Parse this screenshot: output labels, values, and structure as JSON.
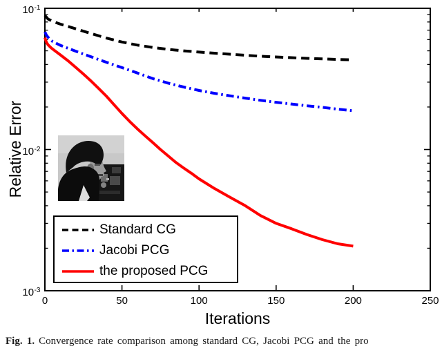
{
  "caption": {
    "fig_label": "Fig. 1.",
    "text": "Convergence rate comparison among standard CG, Jacobi PCG and the pro"
  },
  "chart_data": {
    "type": "line",
    "title": "",
    "xlabel": "Iterations",
    "ylabel": "Relative Error",
    "grid": false,
    "legend_position": "bottom-left",
    "x_axis": {
      "min": 0,
      "max": 250,
      "ticks": [
        0,
        50,
        100,
        150,
        200,
        250
      ]
    },
    "y_axis": {
      "scale": "log",
      "min": 0.001,
      "max": 0.1,
      "tick_base": "10",
      "tick_exponents": [
        -1,
        -2,
        -3
      ]
    },
    "inset": {
      "description": "cameraman test image"
    },
    "series": [
      {
        "name": "Standard CG",
        "color": "#000000",
        "line_style": "dashed",
        "points": [
          [
            0,
            0.089
          ],
          [
            2,
            0.084
          ],
          [
            5,
            0.0808
          ],
          [
            10,
            0.0773
          ],
          [
            20,
            0.0716
          ],
          [
            30,
            0.0662
          ],
          [
            40,
            0.0615
          ],
          [
            50,
            0.0577
          ],
          [
            60,
            0.0549
          ],
          [
            70,
            0.0528
          ],
          [
            80,
            0.0512
          ],
          [
            90,
            0.05
          ],
          [
            100,
            0.049
          ],
          [
            110,
            0.0481
          ],
          [
            120,
            0.0473
          ],
          [
            130,
            0.0465
          ],
          [
            140,
            0.0458
          ],
          [
            150,
            0.0452
          ],
          [
            160,
            0.0447
          ],
          [
            170,
            0.0442
          ],
          [
            180,
            0.0438
          ],
          [
            190,
            0.0434
          ],
          [
            200,
            0.0431
          ]
        ]
      },
      {
        "name": "Jacobi PCG",
        "color": "#0000ff",
        "line_style": "dashdot",
        "points": [
          [
            0,
            0.068
          ],
          [
            1,
            0.0645
          ],
          [
            3,
            0.0605
          ],
          [
            5,
            0.0582
          ],
          [
            10,
            0.0547
          ],
          [
            20,
            0.0497
          ],
          [
            30,
            0.0453
          ],
          [
            40,
            0.0414
          ],
          [
            50,
            0.038
          ],
          [
            60,
            0.0348
          ],
          [
            70,
            0.0318
          ],
          [
            80,
            0.0295
          ],
          [
            90,
            0.0277
          ],
          [
            100,
            0.0262
          ],
          [
            110,
            0.025
          ],
          [
            120,
            0.024
          ],
          [
            130,
            0.0231
          ],
          [
            140,
            0.0223
          ],
          [
            150,
            0.0216
          ],
          [
            160,
            0.021
          ],
          [
            170,
            0.0204
          ],
          [
            180,
            0.0199
          ],
          [
            190,
            0.0193
          ],
          [
            200,
            0.0188
          ]
        ]
      },
      {
        "name": "the proposed PCG",
        "color": "#ff0000",
        "line_style": "solid",
        "points": [
          [
            0,
            0.062
          ],
          [
            1,
            0.0575
          ],
          [
            2,
            0.0552
          ],
          [
            4,
            0.0525
          ],
          [
            6,
            0.0505
          ],
          [
            10,
            0.0468
          ],
          [
            15,
            0.0425
          ],
          [
            20,
            0.0382
          ],
          [
            25,
            0.0342
          ],
          [
            30,
            0.0305
          ],
          [
            35,
            0.027
          ],
          [
            40,
            0.0238
          ],
          [
            45,
            0.0207
          ],
          [
            50,
            0.018
          ],
          [
            55,
            0.0158
          ],
          [
            60,
            0.014
          ],
          [
            65,
            0.0125
          ],
          [
            70,
            0.0112
          ],
          [
            75,
            0.01
          ],
          [
            80,
            0.009
          ],
          [
            85,
            0.0081
          ],
          [
            90,
            0.0074
          ],
          [
            95,
            0.0068
          ],
          [
            100,
            0.0062
          ],
          [
            110,
            0.0053
          ],
          [
            120,
            0.0046
          ],
          [
            130,
            0.004
          ],
          [
            140,
            0.0034
          ],
          [
            150,
            0.003
          ],
          [
            160,
            0.00275
          ],
          [
            170,
            0.0025
          ],
          [
            180,
            0.0023
          ],
          [
            190,
            0.00215
          ],
          [
            200,
            0.00207
          ]
        ]
      }
    ]
  }
}
